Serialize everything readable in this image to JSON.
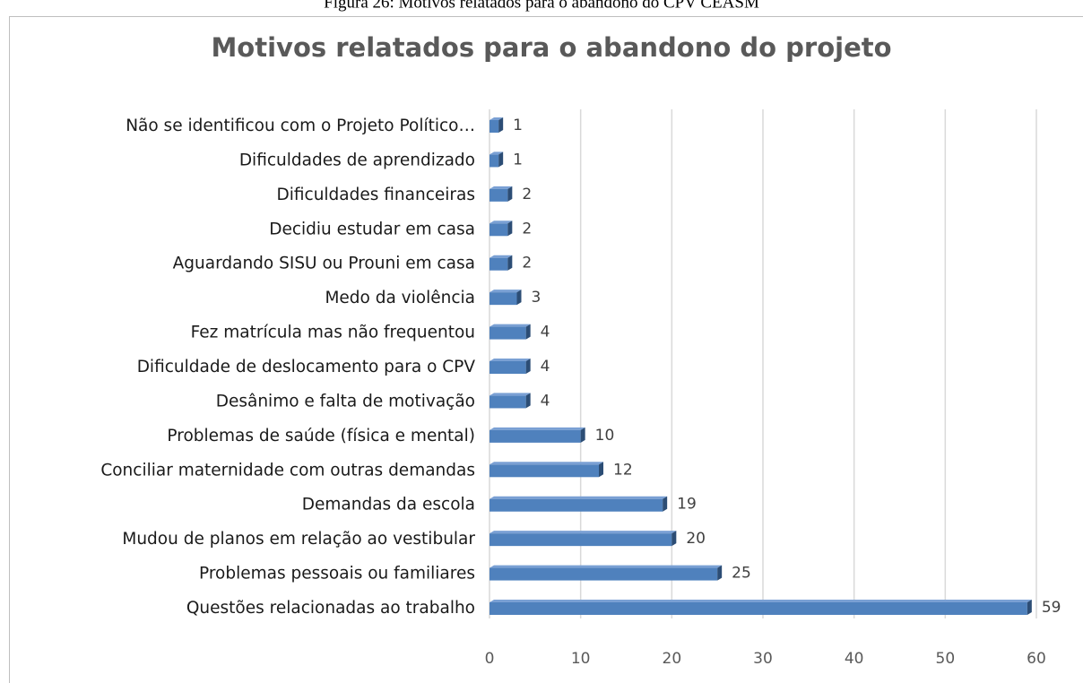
{
  "caption": "Figura 26: Motivos relatados para o abandono do CPV CEASM",
  "chart_data": {
    "type": "bar",
    "orientation": "horizontal",
    "title": "Motivos relatados para o abandono do projeto",
    "categories": [
      "Não se identificou com o Projeto Político…",
      "Dificuldades de aprendizado",
      "Dificuldades financeiras",
      "Decidiu estudar em casa",
      "Aguardando SISU ou Prouni em casa",
      "Medo da violência",
      "Fez matrícula mas não frequentou",
      "Dificuldade de deslocamento para o CPV",
      "Desânimo e falta de motivação",
      "Problemas de saúde (física e mental)",
      "Conciliar maternidade com outras demandas",
      "Demandas da escola",
      "Mudou de planos em relação ao vestibular",
      "Problemas pessoais ou familiares",
      "Questões relacionadas ao trabalho"
    ],
    "values": [
      1,
      1,
      2,
      2,
      2,
      3,
      4,
      4,
      4,
      10,
      12,
      19,
      20,
      25,
      59
    ],
    "color": "#4f81bd",
    "xlim": [
      0,
      60
    ],
    "xticks": [
      0,
      10,
      20,
      30,
      40,
      50,
      60
    ],
    "grid": true
  }
}
